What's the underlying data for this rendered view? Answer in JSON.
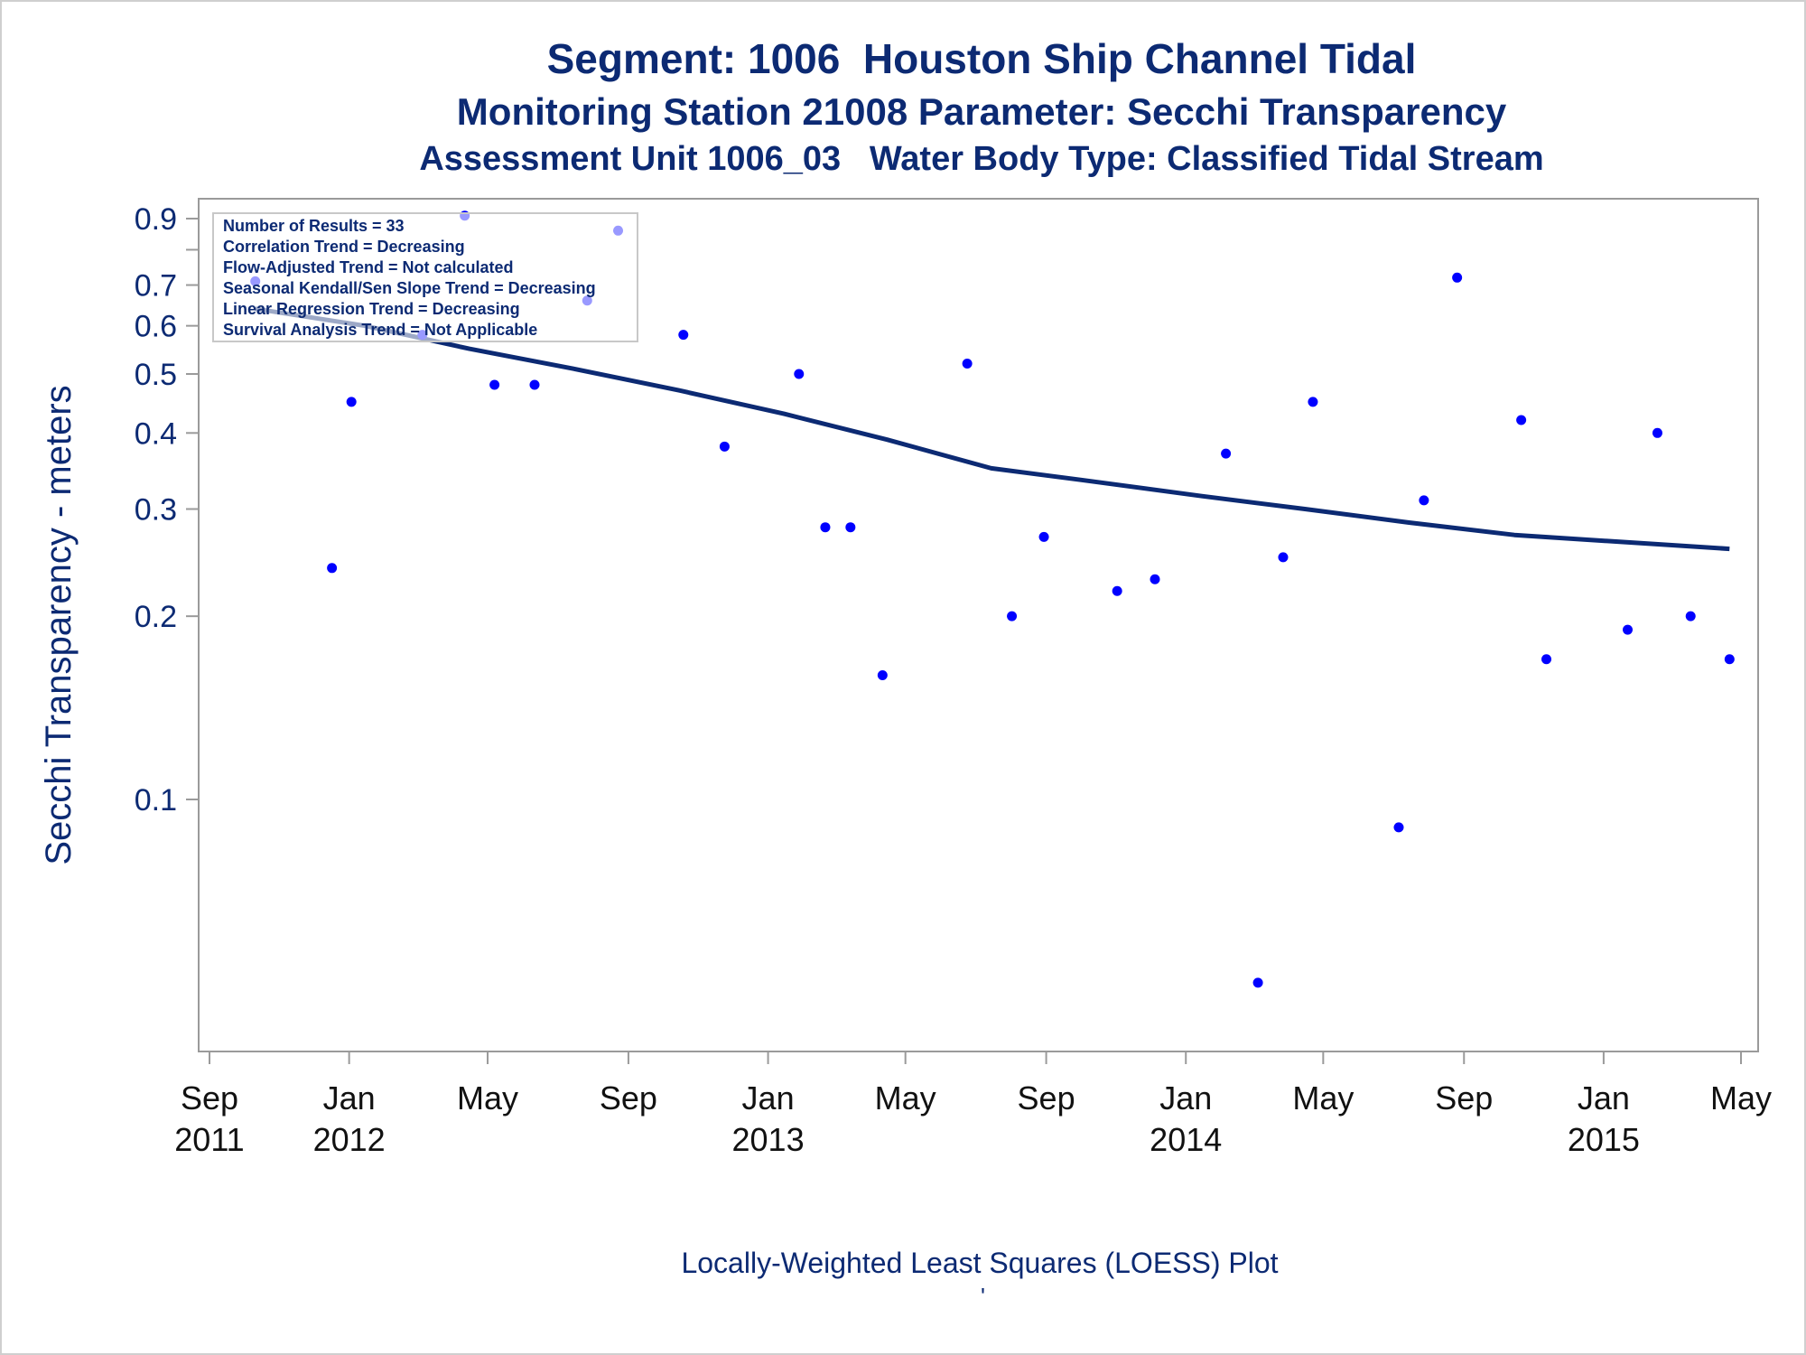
{
  "titles": {
    "line1": "Segment: 1006  Houston Ship Channel Tidal",
    "line2": "Monitoring Station 21008 Parameter: Secchi Transparency",
    "line3": "Assessment Unit 1006_03   Water Body Type: Classified Tidal Stream"
  },
  "footnote": "Locally-Weighted Least Squares (LOESS) Plot",
  "footnote2": "'",
  "legend": {
    "lines": [
      "Number of Results = 33",
      "Correlation Trend = Decreasing",
      "Flow-Adjusted Trend = Not calculated",
      "Seasonal Kendall/Sen Slope Trend = Decreasing",
      "Linear Regression Trend = Decreasing",
      "Survival Analysis Trend = Not Applicable"
    ]
  },
  "colors": {
    "text": "#0c2a73",
    "points": "#0000ff",
    "loess": "#0c2a73",
    "frame": "#9a9a9a"
  },
  "chart_data": {
    "type": "scatter",
    "ylabel": "Secchi Transparency - meters",
    "xlabel": "",
    "y_scale": "log",
    "ylim": [
      0.05,
      0.95
    ],
    "xlim": [
      "2011-09-01",
      "2015-05-01"
    ],
    "y_ticks": [
      0.1,
      0.2,
      0.3,
      0.4,
      0.5,
      0.6,
      0.7,
      0.9
    ],
    "y_minor_ticks": [
      0.8
    ],
    "x_ticks": [
      {
        "date": "2011-09-01",
        "month": "Sep",
        "year": "2011"
      },
      {
        "date": "2012-01-01",
        "month": "Jan",
        "year": "2012"
      },
      {
        "date": "2012-05-01",
        "month": "May",
        "year": ""
      },
      {
        "date": "2012-09-01",
        "month": "Sep",
        "year": ""
      },
      {
        "date": "2013-01-01",
        "month": "Jan",
        "year": "2013"
      },
      {
        "date": "2013-05-01",
        "month": "May",
        "year": ""
      },
      {
        "date": "2013-09-01",
        "month": "Sep",
        "year": ""
      },
      {
        "date": "2014-01-01",
        "month": "Jan",
        "year": "2014"
      },
      {
        "date": "2014-05-01",
        "month": "May",
        "year": ""
      },
      {
        "date": "2014-09-01",
        "month": "Sep",
        "year": ""
      },
      {
        "date": "2015-01-01",
        "month": "Jan",
        "year": "2015"
      },
      {
        "date": "2015-05-01",
        "month": "May",
        "year": ""
      }
    ],
    "series": [
      {
        "kind": "points",
        "points": [
          {
            "x": "2011-10-11",
            "y": 0.71
          },
          {
            "x": "2011-12-17",
            "y": 0.24
          },
          {
            "x": "2012-01-03",
            "y": 0.45
          },
          {
            "x": "2012-03-05",
            "y": 0.58
          },
          {
            "x": "2012-04-11",
            "y": 0.91
          },
          {
            "x": "2012-05-07",
            "y": 0.48
          },
          {
            "x": "2012-06-11",
            "y": 0.48
          },
          {
            "x": "2012-07-27",
            "y": 0.66
          },
          {
            "x": "2012-08-23",
            "y": 0.86
          },
          {
            "x": "2012-10-19",
            "y": 0.58
          },
          {
            "x": "2012-11-24",
            "y": 0.38
          },
          {
            "x": "2013-01-28",
            "y": 0.5
          },
          {
            "x": "2013-02-20",
            "y": 0.28
          },
          {
            "x": "2013-03-14",
            "y": 0.28
          },
          {
            "x": "2013-04-11",
            "y": 0.16
          },
          {
            "x": "2013-06-24",
            "y": 0.52
          },
          {
            "x": "2013-08-02",
            "y": 0.2
          },
          {
            "x": "2013-08-30",
            "y": 0.27
          },
          {
            "x": "2013-11-02",
            "y": 0.22
          },
          {
            "x": "2013-12-05",
            "y": 0.23
          },
          {
            "x": "2014-02-05",
            "y": 0.37
          },
          {
            "x": "2014-03-05",
            "y": 0.05
          },
          {
            "x": "2014-03-27",
            "y": 0.25
          },
          {
            "x": "2014-04-22",
            "y": 0.45
          },
          {
            "x": "2014-07-06",
            "y": 0.09
          },
          {
            "x": "2014-07-28",
            "y": 0.31
          },
          {
            "x": "2014-08-26",
            "y": 0.72
          },
          {
            "x": "2014-10-21",
            "y": 0.42
          },
          {
            "x": "2014-11-12",
            "y": 0.17
          },
          {
            "x": "2015-01-22",
            "y": 0.19
          },
          {
            "x": "2015-02-17",
            "y": 0.4
          },
          {
            "x": "2015-03-18",
            "y": 0.2
          },
          {
            "x": "2015-04-21",
            "y": 0.17
          }
        ]
      },
      {
        "kind": "loess",
        "points": [
          {
            "x": "2011-10-11",
            "y": 0.64
          },
          {
            "x": "2012-01-15",
            "y": 0.6
          },
          {
            "x": "2012-04-15",
            "y": 0.55
          },
          {
            "x": "2012-07-15",
            "y": 0.51
          },
          {
            "x": "2012-10-15",
            "y": 0.47
          },
          {
            "x": "2013-01-15",
            "y": 0.43
          },
          {
            "x": "2013-04-15",
            "y": 0.39
          },
          {
            "x": "2013-07-15",
            "y": 0.35
          },
          {
            "x": "2013-10-01",
            "y": 0.335
          },
          {
            "x": "2014-01-15",
            "y": 0.315
          },
          {
            "x": "2014-04-15",
            "y": 0.3
          },
          {
            "x": "2014-07-15",
            "y": 0.285
          },
          {
            "x": "2014-10-15",
            "y": 0.272
          },
          {
            "x": "2015-01-15",
            "y": 0.265
          },
          {
            "x": "2015-04-21",
            "y": 0.258
          }
        ]
      }
    ]
  }
}
